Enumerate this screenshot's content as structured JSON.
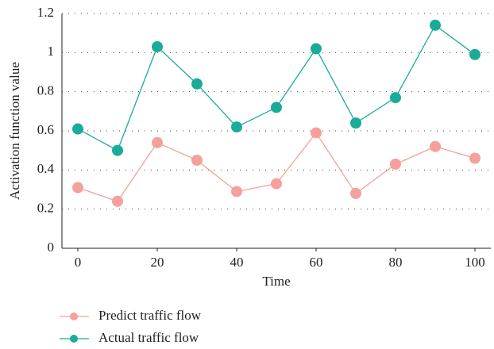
{
  "chart_data": {
    "type": "line",
    "x": [
      0,
      10,
      20,
      30,
      40,
      50,
      60,
      70,
      80,
      90,
      100
    ],
    "series": [
      {
        "name": "Predict traffic flow",
        "color": "#f4a09c",
        "values": [
          0.31,
          0.24,
          0.54,
          0.45,
          0.29,
          0.33,
          0.59,
          0.28,
          0.43,
          0.52,
          0.46
        ]
      },
      {
        "name": "Actual traffic flow",
        "color": "#1aab9b",
        "values": [
          0.61,
          0.5,
          1.03,
          0.84,
          0.62,
          0.72,
          1.02,
          0.64,
          0.77,
          1.14,
          0.99
        ]
      }
    ],
    "xlabel": "Time",
    "ylabel": "Activation function value",
    "xlim": [
      -4,
      104
    ],
    "ylim": [
      0,
      1.2
    ],
    "xticks": [
      0,
      20,
      40,
      60,
      80,
      100
    ],
    "yticks": [
      0,
      0.2,
      0.4,
      0.6,
      0.8,
      1,
      1.2
    ],
    "grid": true
  }
}
